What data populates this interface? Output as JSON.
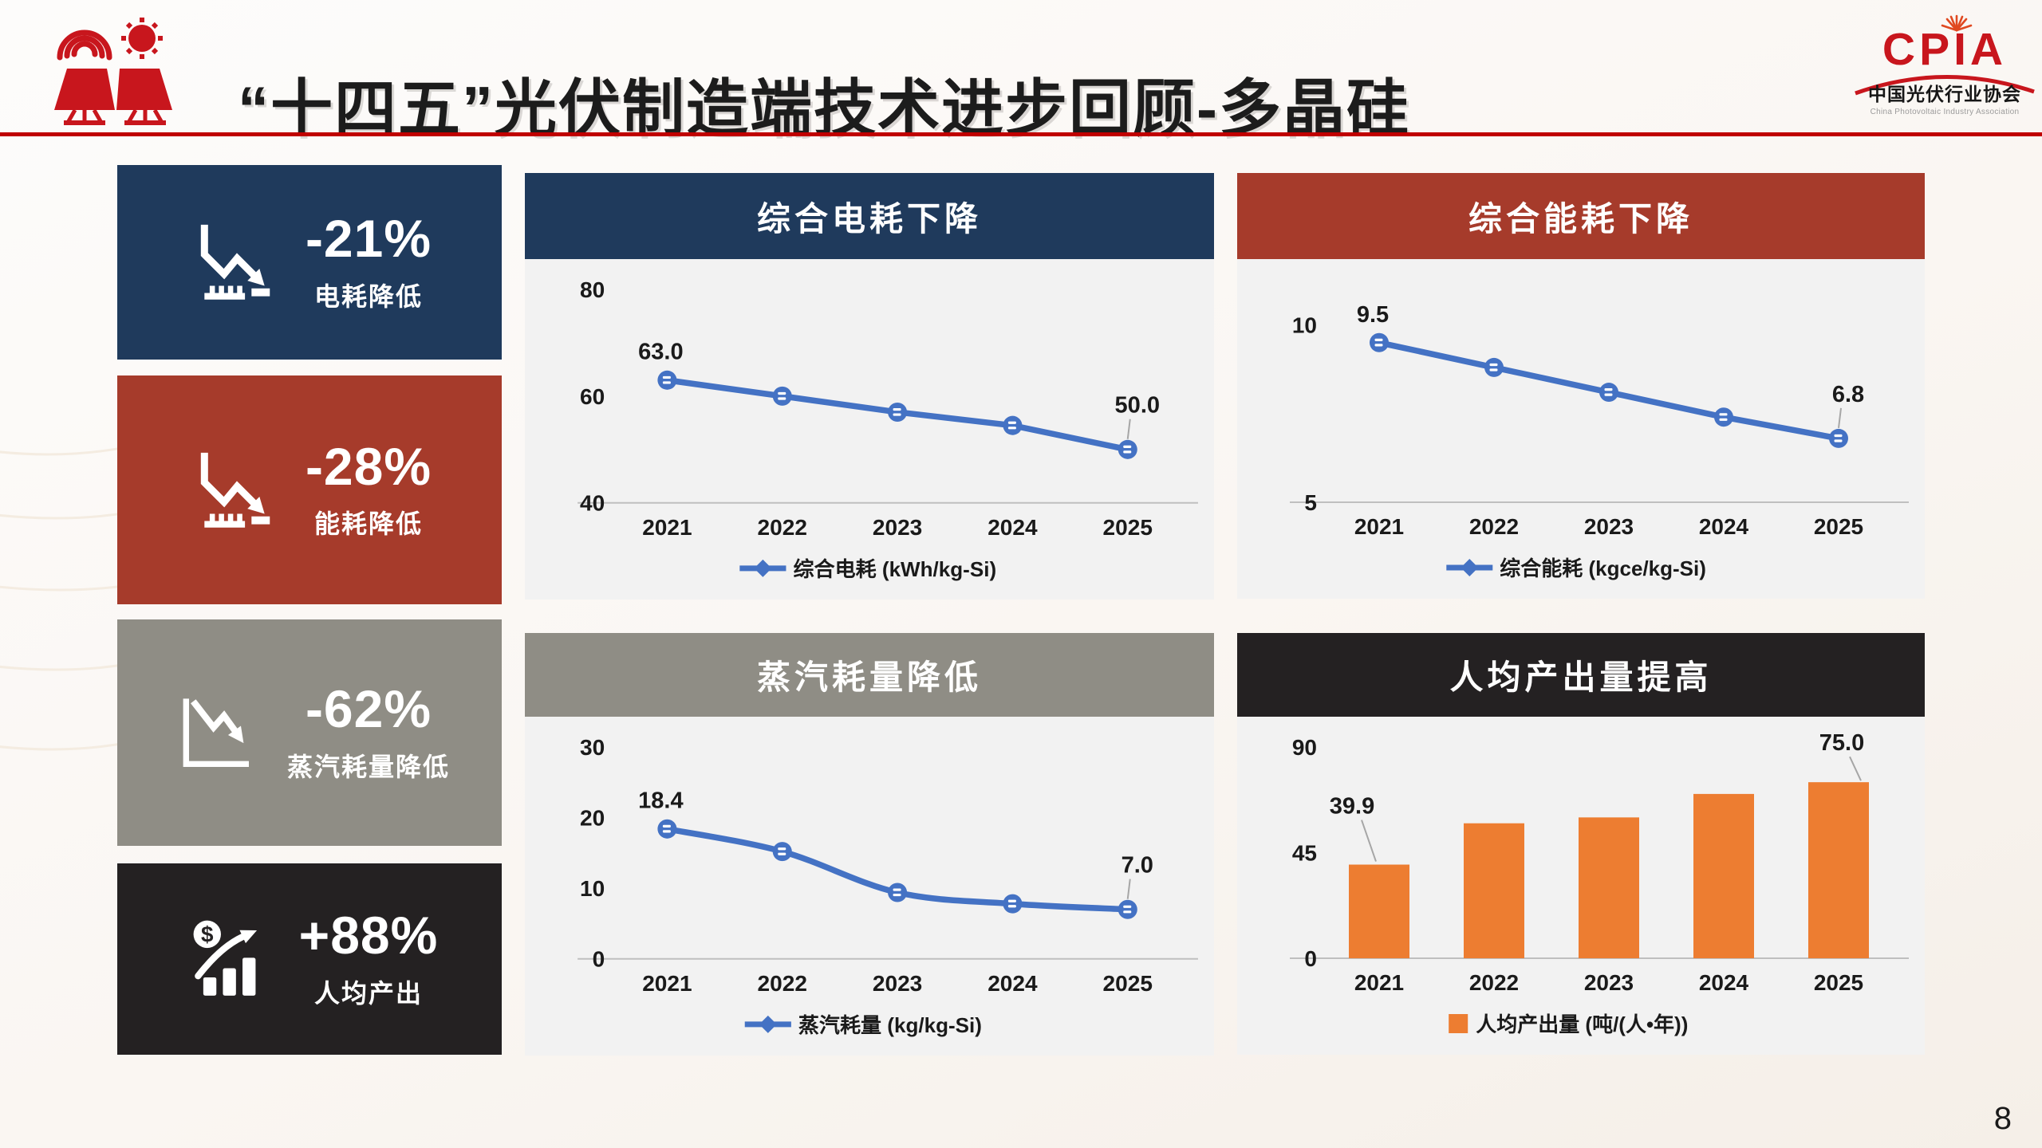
{
  "slide": {
    "title": "“十四五”光伏制造端技术进步回顾-多晶硅",
    "page_number": "8",
    "divider_color": "#C00000"
  },
  "logo": {
    "acronym": "CPIA",
    "name_cn": "中国光伏行业协会",
    "name_en": "China Photovoltaic Industry Association",
    "brand_red": "#C8161D"
  },
  "stats": [
    {
      "key": "electricity-consumption",
      "value": "-21%",
      "label": "电耗降低",
      "bg": "#1F3A5C",
      "icon": "declining-bar-chart"
    },
    {
      "key": "energy-consumption",
      "value": "-28%",
      "label": "能耗降低",
      "bg": "#A63B2B",
      "icon": "declining-bar-chart"
    },
    {
      "key": "steam-consumption",
      "value": "-62%",
      "label": "蒸汽耗量降低",
      "bg": "#8F8D85",
      "icon": "declining-line-chart"
    },
    {
      "key": "per-capita-output",
      "value": "+88%",
      "label": "人均产出",
      "bg": "#242122",
      "icon": "growth-dollar-chart"
    }
  ],
  "chart_data": [
    {
      "key": "electricity",
      "type": "line",
      "title": "综合电耗下降",
      "header_color": "#1F3A5C",
      "categories": [
        "2021",
        "2022",
        "2023",
        "2024",
        "2025"
      ],
      "values": [
        63.0,
        60.0,
        57.0,
        54.5,
        50.0
      ],
      "labels": [
        "63.0",
        null,
        null,
        null,
        "50.0"
      ],
      "legend": "综合电耗 (kWh/kg-Si)",
      "yticks": [
        40,
        60,
        80
      ],
      "ylim": [
        40,
        80
      ],
      "series_color": "#4472C4",
      "smooth": false,
      "grid": false,
      "legend_position": "bottom"
    },
    {
      "key": "energy",
      "type": "line",
      "title": "综合能耗下降",
      "header_color": "#A63B2B",
      "categories": [
        "2021",
        "2022",
        "2023",
        "2024",
        "2025"
      ],
      "values": [
        9.5,
        8.8,
        8.1,
        7.4,
        6.8
      ],
      "labels": [
        "9.5",
        null,
        null,
        null,
        "6.8"
      ],
      "legend": "综合能耗 (kgce/kg-Si)",
      "yticks": [
        5,
        10
      ],
      "ylim": [
        5,
        11
      ],
      "series_color": "#4472C4",
      "smooth": false,
      "grid": false,
      "legend_position": "bottom"
    },
    {
      "key": "steam",
      "type": "line",
      "title": "蒸汽耗量降低",
      "header_color": "#8F8D85",
      "categories": [
        "2021",
        "2022",
        "2023",
        "2024",
        "2025"
      ],
      "values": [
        18.4,
        15.2,
        9.4,
        7.8,
        7.0
      ],
      "labels": [
        "18.4",
        null,
        null,
        null,
        "7.0"
      ],
      "legend": "蒸汽耗量 (kg/kg-Si)",
      "yticks": [
        0,
        10,
        20,
        30
      ],
      "ylim": [
        0,
        30
      ],
      "series_color": "#4472C4",
      "smooth": true,
      "grid": false,
      "legend_position": "bottom"
    },
    {
      "key": "output",
      "type": "bar",
      "title": "人均产出量提高",
      "header_color": "#242122",
      "categories": [
        "2021",
        "2022",
        "2023",
        "2024",
        "2025"
      ],
      "values": [
        39.9,
        57.5,
        60.0,
        70.0,
        75.0
      ],
      "labels": [
        "39.9",
        null,
        null,
        null,
        "75.0"
      ],
      "legend": "人均产出量 (吨/(人•年))",
      "yticks": [
        0,
        45,
        90
      ],
      "ylim": [
        0,
        90
      ],
      "series_color": "#ED7D31",
      "smooth": false,
      "grid": false,
      "legend_position": "bottom"
    }
  ]
}
